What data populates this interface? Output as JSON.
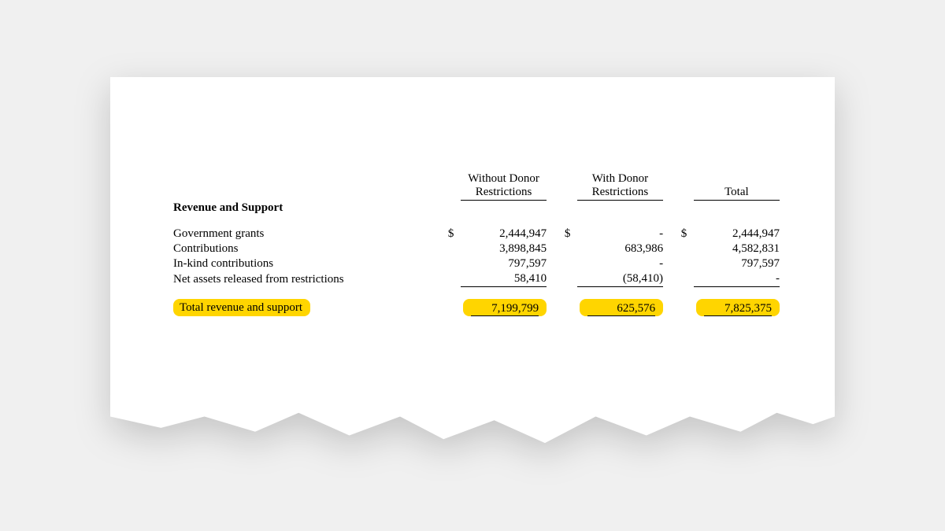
{
  "columns": {
    "without": "Without Donor\nRestrictions",
    "with": "With Donor\nRestrictions",
    "total": "Total"
  },
  "section_title": "Revenue and Support",
  "rows": [
    {
      "label": "Government grants",
      "without": "2,444,947",
      "with": "-",
      "total": "2,444,947",
      "show_sym": true
    },
    {
      "label": "Contributions",
      "without": "3,898,845",
      "with": "683,986",
      "total": "4,582,831",
      "show_sym": false
    },
    {
      "label": "In-kind contributions",
      "without": "797,597",
      "with": "-",
      "total": "797,597",
      "show_sym": false
    },
    {
      "label": "Net assets released from restrictions",
      "without": "58,410",
      "with": "(58,410)",
      "total": "-",
      "show_sym": false
    }
  ],
  "total_row": {
    "label": "Total revenue and support",
    "without": "7,199,799",
    "with": "625,576",
    "total": "7,825,375"
  },
  "currency_symbol": "$",
  "colors": {
    "highlight": "#ffd500",
    "paper": "#ffffff",
    "page_bg": "#f0f0f0",
    "text": "#000000"
  }
}
